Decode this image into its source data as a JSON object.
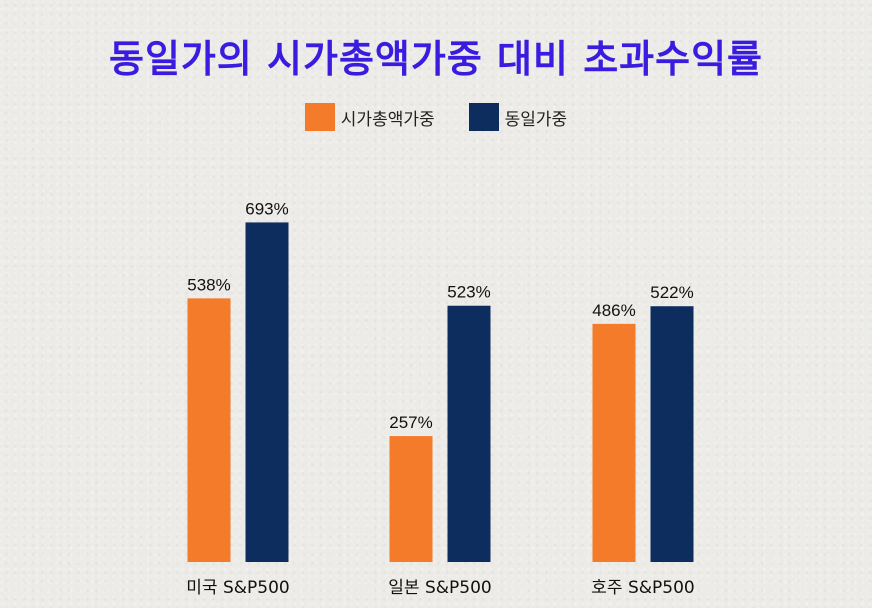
{
  "colors": {
    "title": "#3a1ce0",
    "series_a": "#f47b2a",
    "series_b": "#0d2d5e"
  },
  "chart_data": {
    "type": "bar",
    "title": "동일가의 시가총액가중 대비 초과수익률",
    "categories": [
      "미국 S&P500",
      "일본 S&P500",
      "호주 S&P500"
    ],
    "series": [
      {
        "name": "시가총액가중",
        "values": [
          538,
          257,
          486
        ],
        "labels": [
          "538%",
          "257%",
          "486%"
        ]
      },
      {
        "name": "동일가중",
        "values": [
          693,
          523,
          522
        ],
        "labels": [
          "693%",
          "523%",
          "522%"
        ]
      }
    ],
    "xlabel": "",
    "ylabel": "",
    "ylim": [
      0,
      800
    ],
    "grid": false,
    "legend": "top-center"
  }
}
